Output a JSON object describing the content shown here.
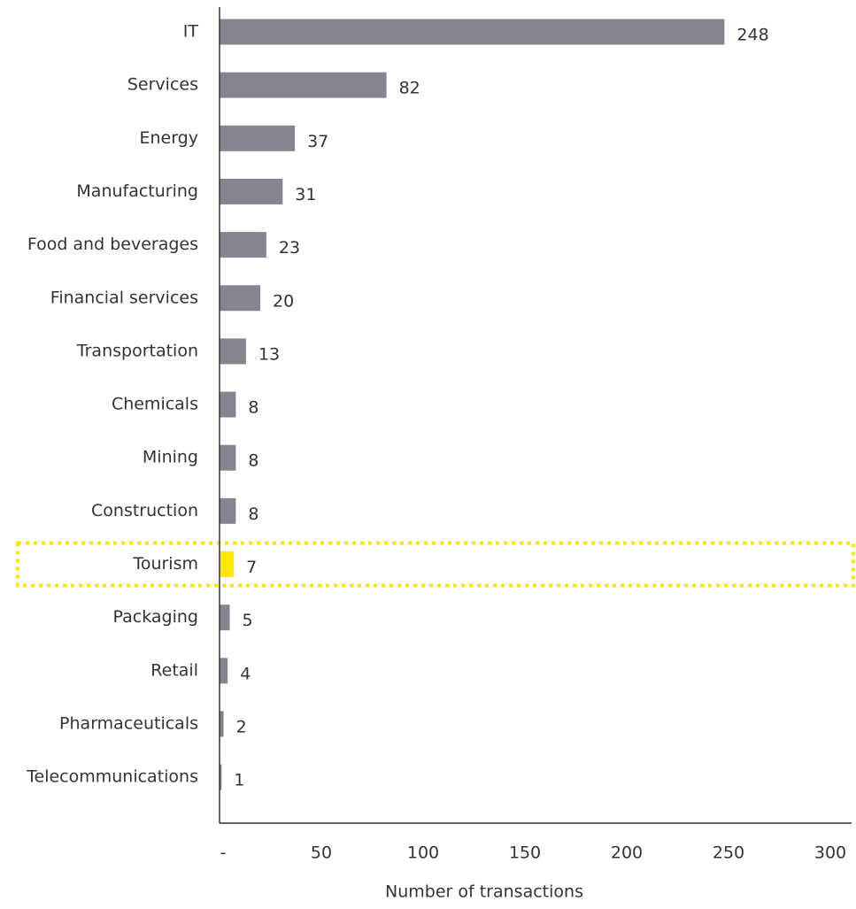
{
  "chart_data": {
    "type": "bar",
    "orientation": "horizontal",
    "categories": [
      "IT",
      "Services",
      "Energy",
      "Manufacturing",
      "Food and beverages",
      "Financial services",
      "Transportation",
      "Chemicals",
      "Mining",
      "Construction",
      "Tourism",
      "Packaging",
      "Retail",
      "Pharmaceuticals",
      "Telecommunications"
    ],
    "values": [
      248,
      82,
      37,
      31,
      23,
      20,
      13,
      8,
      8,
      8,
      7,
      5,
      4,
      2,
      1
    ],
    "colors": [
      "#86858f",
      "#86858f",
      "#86858f",
      "#86858f",
      "#86858f",
      "#86858f",
      "#86858f",
      "#86858f",
      "#86858f",
      "#86858f",
      "#ffe600",
      "#86858f",
      "#86858f",
      "#86858f",
      "#86858f"
    ],
    "xlabel": "Number of transactions",
    "xlim": [
      0,
      300
    ],
    "xticks": [
      {
        "value": 0,
        "label": "-"
      },
      50,
      100,
      150,
      200,
      250,
      300
    ]
  }
}
